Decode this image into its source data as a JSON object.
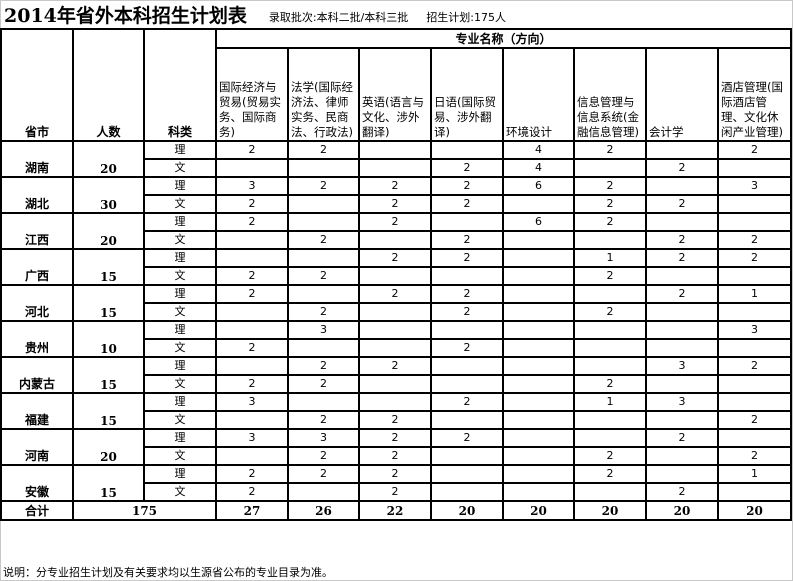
{
  "header": {
    "title": "2014年省外本科招生计划表",
    "batch": "录取批次:本科二批/本科三批",
    "plan": "招生计划:175人"
  },
  "table": {
    "col_province": "省市",
    "col_count": "人数",
    "col_type": "科类",
    "majors_group": "专业名称（方向）",
    "majors": [
      "国际经济与贸易(贸易实务、国际商务)",
      "法学(国际经济法、律师实务、民商法、行政法)",
      "英语(语言与文化、涉外翻译)",
      "日语(国际贸易、涉外翻译)",
      "环境设计",
      "信息管理与信息系统(金融信息管理)",
      "会计学",
      "酒店管理(国际酒店管理、文化休闲产业管理)"
    ],
    "provinces": [
      {
        "name": "湖南",
        "count": "20",
        "rows": [
          {
            "type": "理",
            "values": [
              "2",
              "2",
              "",
              "",
              "4",
              "2",
              "",
              "2"
            ]
          },
          {
            "type": "文",
            "values": [
              "",
              "",
              "",
              "2",
              "4",
              "",
              "2",
              ""
            ]
          }
        ]
      },
      {
        "name": "湖北",
        "count": "30",
        "rows": [
          {
            "type": "理",
            "values": [
              "3",
              "2",
              "2",
              "2",
              "6",
              "2",
              "",
              "3"
            ]
          },
          {
            "type": "文",
            "values": [
              "2",
              "",
              "2",
              "2",
              "",
              "2",
              "2",
              ""
            ]
          }
        ]
      },
      {
        "name": "江西",
        "count": "20",
        "rows": [
          {
            "type": "理",
            "values": [
              "2",
              "",
              "2",
              "",
              "6",
              "2",
              "",
              ""
            ]
          },
          {
            "type": "文",
            "values": [
              "",
              "2",
              "",
              "2",
              "",
              "",
              "2",
              "2"
            ]
          }
        ]
      },
      {
        "name": "广西",
        "count": "15",
        "rows": [
          {
            "type": "理",
            "values": [
              "",
              "",
              "2",
              "2",
              "",
              "1",
              "2",
              "2"
            ]
          },
          {
            "type": "文",
            "values": [
              "2",
              "2",
              "",
              "",
              "",
              "2",
              "",
              ""
            ]
          }
        ]
      },
      {
        "name": "河北",
        "count": "15",
        "rows": [
          {
            "type": "理",
            "values": [
              "2",
              "",
              "2",
              "2",
              "",
              "",
              "2",
              "1"
            ]
          },
          {
            "type": "文",
            "values": [
              "",
              "2",
              "",
              "2",
              "",
              "2",
              "",
              ""
            ]
          }
        ]
      },
      {
        "name": "贵州",
        "count": "10",
        "rows": [
          {
            "type": "理",
            "values": [
              "",
              "3",
              "",
              "",
              "",
              "",
              "",
              "3"
            ]
          },
          {
            "type": "文",
            "values": [
              "2",
              "",
              "",
              "2",
              "",
              "",
              "",
              ""
            ]
          }
        ]
      },
      {
        "name": "内蒙古",
        "count": "15",
        "rows": [
          {
            "type": "理",
            "values": [
              "",
              "2",
              "2",
              "",
              "",
              "",
              "3",
              "2"
            ]
          },
          {
            "type": "文",
            "values": [
              "2",
              "2",
              "",
              "",
              "",
              "2",
              "",
              ""
            ]
          }
        ]
      },
      {
        "name": "福建",
        "count": "15",
        "rows": [
          {
            "type": "理",
            "values": [
              "3",
              "",
              "",
              "2",
              "",
              "1",
              "3",
              ""
            ]
          },
          {
            "type": "文",
            "values": [
              "",
              "2",
              "2",
              "",
              "",
              "",
              "",
              "2"
            ]
          }
        ]
      },
      {
        "name": "河南",
        "count": "20",
        "rows": [
          {
            "type": "理",
            "values": [
              "3",
              "3",
              "2",
              "2",
              "",
              "",
              "2",
              ""
            ]
          },
          {
            "type": "文",
            "values": [
              "",
              "2",
              "2",
              "",
              "",
              "2",
              "",
              "2"
            ]
          }
        ]
      },
      {
        "name": "安徽",
        "count": "15",
        "rows": [
          {
            "type": "理",
            "values": [
              "2",
              "2",
              "2",
              "",
              "",
              "2",
              "",
              "1"
            ]
          },
          {
            "type": "文",
            "values": [
              "2",
              "",
              "2",
              "",
              "",
              "",
              "2",
              ""
            ]
          }
        ]
      }
    ],
    "total_label": "合计",
    "total_count": "175",
    "totals": [
      "27",
      "26",
      "22",
      "20",
      "20",
      "20",
      "20",
      "20"
    ]
  },
  "note": "说明：分专业招生计划及有关要求均以生源省公布的专业目录为准。"
}
